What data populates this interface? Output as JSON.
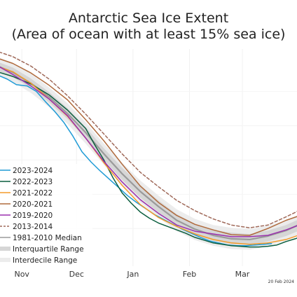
{
  "chart_data": {
    "type": "line",
    "title": "Antarctic Sea Ice Extent",
    "subtitle": "(Area of ocean with at least 15% sea ice)",
    "date_stamp": "20 Feb 2024",
    "x_ticks": [
      "Nov",
      "Dec",
      "Jan",
      "Feb",
      "Mar"
    ],
    "x_domain": [
      "Oct 20",
      "Mar 31"
    ],
    "grid": true,
    "legend_position": "bottom-left",
    "bands": [
      {
        "name": "Interdecile Range",
        "color": "#ececec",
        "x": [
          -15,
          -5,
          5,
          15,
          25,
          35,
          45,
          55,
          65,
          75,
          85,
          95,
          105,
          115,
          125,
          135,
          145,
          155,
          165
        ],
        "lower": [
          32.5,
          31.4,
          29.8,
          27.7,
          25.3,
          22.4,
          19.3,
          16.4,
          13.8,
          11.6,
          9.6,
          8.3,
          7.5,
          7.0,
          6.9,
          7.4,
          8.2,
          9.3,
          10.6
        ],
        "upper": [
          35.2,
          34.2,
          32.6,
          30.6,
          28.3,
          25.5,
          22.4,
          19.6,
          17.0,
          14.8,
          12.8,
          11.4,
          10.5,
          10.1,
          9.9,
          10.4,
          11.2,
          12.4,
          13.8
        ]
      },
      {
        "name": "Interquartile Range",
        "color": "#d6d6d6",
        "x": [
          -15,
          -5,
          5,
          15,
          25,
          35,
          45,
          55,
          65,
          75,
          85,
          95,
          105,
          115,
          125,
          135,
          145,
          155,
          165
        ],
        "lower": [
          33.2,
          32.1,
          30.5,
          28.4,
          26.0,
          23.1,
          20.0,
          17.1,
          14.5,
          12.3,
          10.3,
          9.0,
          8.2,
          7.7,
          7.6,
          8.1,
          8.9,
          10.0,
          11.3
        ],
        "upper": [
          34.5,
          33.5,
          31.9,
          29.9,
          27.6,
          24.8,
          21.7,
          18.9,
          16.3,
          14.1,
          12.1,
          10.7,
          9.8,
          9.4,
          9.2,
          9.7,
          10.5,
          11.7,
          13.1
        ]
      }
    ],
    "series": [
      {
        "name": "2023-2024",
        "color": "#1f9bd6",
        "dash": "",
        "x": [
          -15,
          -8,
          -3,
          3,
          8,
          13,
          18,
          23,
          28,
          33,
          38,
          43,
          48,
          53,
          58,
          63,
          68,
          73,
          78,
          83,
          88,
          93,
          98,
          103,
          108,
          113,
          118,
          123,
          128,
          133,
          137
        ],
        "y": [
          32.6,
          31.8,
          31.0,
          30.8,
          30.0,
          28.5,
          27.1,
          25.5,
          23.5,
          21.2,
          19.7,
          18.4,
          17.2,
          16.0,
          14.8,
          13.8,
          12.9,
          12.0,
          11.3,
          10.6,
          9.9,
          9.3,
          8.7,
          8.2,
          7.9,
          7.6,
          7.5,
          7.5,
          7.6,
          7.7,
          7.8
        ]
      },
      {
        "name": "2022-2023",
        "color": "#0b5e3e",
        "dash": "",
        "x": [
          -15,
          -5,
          5,
          15,
          25,
          35,
          40,
          45,
          50,
          55,
          60,
          65,
          70,
          75,
          80,
          85,
          90,
          95,
          100,
          105,
          110,
          115,
          120,
          125,
          130,
          135,
          140,
          145,
          150,
          155,
          160,
          165
        ],
        "y": [
          33.0,
          32.2,
          31.1,
          29.5,
          27.3,
          24.6,
          22.2,
          20.0,
          17.4,
          15.2,
          13.7,
          12.4,
          11.5,
          10.8,
          10.3,
          9.8,
          9.3,
          8.7,
          8.3,
          7.9,
          7.7,
          7.5,
          7.4,
          7.3,
          7.3,
          7.4,
          7.6,
          8.1,
          8.5,
          9.0,
          9.6,
          10.5
        ]
      },
      {
        "name": "2021-2022",
        "color": "#f39a2a",
        "dash": "",
        "x": [
          -15,
          -5,
          5,
          15,
          25,
          35,
          45,
          55,
          65,
          75,
          85,
          95,
          105,
          115,
          125,
          135,
          145,
          155,
          165
        ],
        "y": [
          33.8,
          32.9,
          31.2,
          28.9,
          26.4,
          23.2,
          19.6,
          16.3,
          13.5,
          11.6,
          10.3,
          9.2,
          8.4,
          7.9,
          7.7,
          7.9,
          8.4,
          9.3,
          10.3
        ]
      },
      {
        "name": "2020-2021",
        "color": "#b06a3c",
        "dash": "",
        "x": [
          -15,
          -5,
          5,
          15,
          25,
          35,
          45,
          55,
          65,
          75,
          85,
          95,
          105,
          115,
          125,
          135,
          145,
          155,
          165
        ],
        "y": [
          35.0,
          34.1,
          32.7,
          30.9,
          28.8,
          25.9,
          22.8,
          19.4,
          16.2,
          13.8,
          11.9,
          10.6,
          9.8,
          9.1,
          9.0,
          10.0,
          11.2,
          12.1,
          13.2
        ]
      },
      {
        "name": "2019-2020",
        "color": "#9b2fae",
        "dash": "",
        "x": [
          -15,
          -5,
          5,
          15,
          25,
          35,
          45,
          55,
          65,
          75,
          85,
          95,
          105,
          115,
          125,
          135,
          145,
          155,
          165
        ],
        "y": [
          34.0,
          32.5,
          30.8,
          28.9,
          26.5,
          23.2,
          19.8,
          16.8,
          14.2,
          12.2,
          10.5,
          9.6,
          9.2,
          8.8,
          8.8,
          9.0,
          9.8,
          10.8,
          11.7
        ]
      },
      {
        "name": "2013-2014",
        "color": "#a06a5a",
        "dash": "4,3",
        "x": [
          -15,
          -5,
          5,
          15,
          25,
          35,
          45,
          55,
          65,
          75,
          85,
          95,
          105,
          115,
          125,
          135,
          145,
          155,
          165
        ],
        "y": [
          36.0,
          35.1,
          33.7,
          31.8,
          29.4,
          26.7,
          23.8,
          20.9,
          18.2,
          16.1,
          14.1,
          12.6,
          11.4,
          10.5,
          10.1,
          10.5,
          11.7,
          13.0,
          14.5
        ]
      },
      {
        "name": "1981-2010 Median",
        "color": "#9a9a9a",
        "dash": "",
        "x": [
          -15,
          -5,
          5,
          15,
          25,
          35,
          45,
          55,
          65,
          75,
          85,
          95,
          105,
          115,
          125,
          135,
          145,
          155,
          165
        ],
        "y": [
          33.9,
          32.8,
          31.2,
          29.2,
          26.8,
          24.0,
          20.9,
          18.0,
          15.4,
          13.2,
          11.2,
          9.9,
          9.0,
          8.5,
          8.4,
          8.9,
          9.7,
          10.9,
          12.2
        ]
      }
    ],
    "legend": [
      {
        "label": "2023-2024",
        "color": "#1f9bd6",
        "style": "line"
      },
      {
        "label": "2022-2023",
        "color": "#0b5e3e",
        "style": "line"
      },
      {
        "label": "2021-2022",
        "color": "#f39a2a",
        "style": "line"
      },
      {
        "label": "2020-2021",
        "color": "#b06a3c",
        "style": "line"
      },
      {
        "label": "2019-2020",
        "color": "#9b2fae",
        "style": "line"
      },
      {
        "label": "2013-2014",
        "color": "#a06a5a",
        "style": "dash"
      },
      {
        "label": "1981-2010 Median",
        "color": "#9a9a9a",
        "style": "line"
      },
      {
        "label": "Interquartile Range",
        "color": "#d6d6d6",
        "style": "band"
      },
      {
        "label": "Interdecile Range",
        "color": "#ececec",
        "style": "band"
      }
    ]
  }
}
